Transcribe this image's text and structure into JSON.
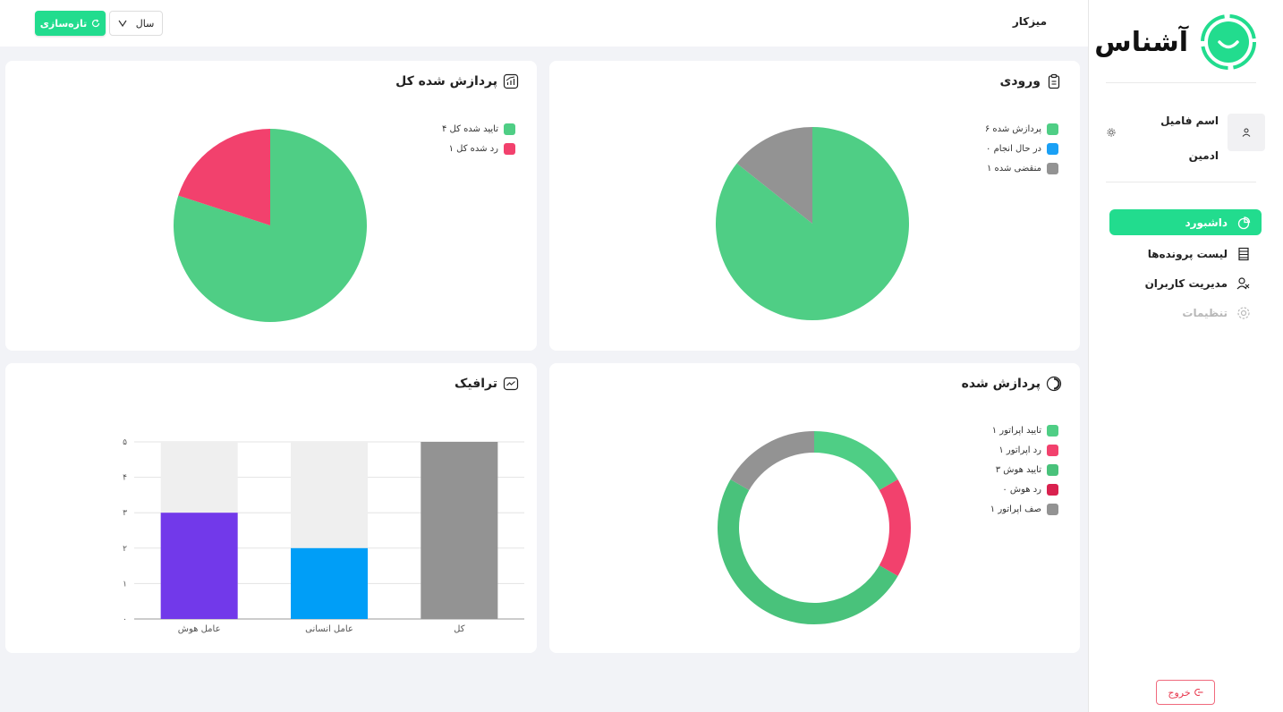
{
  "app": {
    "logo_text": "آشناس"
  },
  "header": {
    "title": "میزکار",
    "refresh_label": "تازه‌سازی",
    "period_select": "سال"
  },
  "user": {
    "name": "اسم فامیل",
    "role": "ادمین"
  },
  "nav": {
    "items": [
      {
        "label": "داشبورد",
        "icon": "pie-chart-icon",
        "state": "active"
      },
      {
        "label": "لیست پرونده‌ها",
        "icon": "list-icon",
        "state": "normal"
      },
      {
        "label": "مدیریت کاربران",
        "icon": "users-icon",
        "state": "normal"
      },
      {
        "label": "تنظیمات",
        "icon": "gear-icon",
        "state": "disabled"
      }
    ],
    "logout_label": "خروج"
  },
  "colors": {
    "accent": "#22dc8e",
    "green": "#4fce85",
    "red": "#f2416d",
    "blue": "#1aa0f5",
    "gray": "#939393",
    "purple": "#7239ea",
    "dark_green": "#49c27b",
    "crimson": "#d9214e"
  },
  "cards": {
    "incoming": {
      "title": "ورودی",
      "icon": "clipboard-icon"
    },
    "total_processed": {
      "title": "پردازش شده کل",
      "icon": "chart-icon"
    },
    "processed": {
      "title": "پردازش شده",
      "icon": "progress-icon"
    },
    "traffic": {
      "title": "ترافیک",
      "icon": "trend-icon"
    }
  },
  "chart_data": [
    {
      "id": "incoming",
      "type": "pie",
      "title": "ورودی",
      "slices": [
        {
          "label": "پردازش شده ۶",
          "value": 6,
          "color": "#4fce85"
        },
        {
          "label": "در حال انجام ۰",
          "value": 0,
          "color": "#1aa0f5"
        },
        {
          "label": "منقضی شده ۱",
          "value": 1,
          "color": "#939393"
        }
      ],
      "legend_position": "top-right"
    },
    {
      "id": "total_processed",
      "type": "pie",
      "title": "پردازش شده کل",
      "slices": [
        {
          "label": "تایید شده کل ۴",
          "value": 4,
          "color": "#4fce85"
        },
        {
          "label": "رد شده کل ۱",
          "value": 1,
          "color": "#f2416d"
        }
      ],
      "legend_position": "top-right"
    },
    {
      "id": "processed",
      "type": "pie",
      "title": "پردازش شده",
      "donut": true,
      "slices": [
        {
          "label": "تایید اپراتور ۱",
          "value": 1,
          "color": "#4fce85"
        },
        {
          "label": "رد اپراتور ۱",
          "value": 1,
          "color": "#f2416d"
        },
        {
          "label": "تایید هوش ۳",
          "value": 3,
          "color": "#49c27b"
        },
        {
          "label": "رد هوش ۰",
          "value": 0,
          "color": "#d9214e"
        },
        {
          "label": "صف اپراتور ۱",
          "value": 1,
          "color": "#939393"
        }
      ],
      "legend_position": "top-right"
    },
    {
      "id": "traffic",
      "type": "bar",
      "title": "ترافیک",
      "categories": [
        "عامل هوش",
        "عامل انسانی",
        "کل"
      ],
      "values": [
        3,
        2,
        5
      ],
      "background_max": 5,
      "bar_colors": [
        "#7239ea",
        "#009ef7",
        "#939393"
      ],
      "ylim": [
        0,
        5
      ],
      "yticks": [
        "۰",
        "۱",
        "۲",
        "۳",
        "۴",
        "۵"
      ],
      "grid": true
    }
  ]
}
